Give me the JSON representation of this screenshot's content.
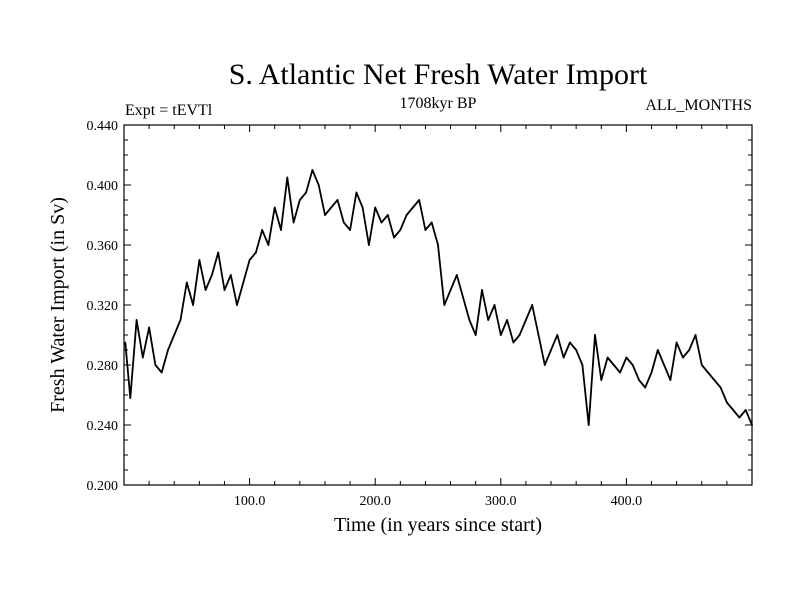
{
  "colors": {
    "line": "#000000",
    "background": "#ffffff"
  },
  "chart_data": {
    "type": "line",
    "title": "S. Atlantic Net Fresh Water Import",
    "experiment": "Expt = tEVTl",
    "period": "1708kyr BP",
    "months": "ALL_MONTHS",
    "xlabel": "Time (in years since start)",
    "ylabel": "Fresh Water Import (in Sv)",
    "xlim": [
      0,
      500
    ],
    "ylim": [
      0.2,
      0.44
    ],
    "x_ticks": [
      100,
      200,
      300,
      400
    ],
    "x_tick_labels": [
      "100.0",
      "200.0",
      "300.0",
      "400.0"
    ],
    "y_ticks": [
      0.2,
      0.24,
      0.28,
      0.32,
      0.36,
      0.4,
      0.44
    ],
    "y_tick_labels": [
      "0.200",
      "0.240",
      "0.280",
      "0.320",
      "0.360",
      "0.400",
      "0.440"
    ],
    "grid": false,
    "series": [
      {
        "name": "Fresh Water Import",
        "x": [
          1,
          5,
          10,
          15,
          20,
          25,
          30,
          35,
          40,
          45,
          50,
          55,
          60,
          65,
          70,
          75,
          80,
          85,
          90,
          95,
          100,
          105,
          110,
          115,
          120,
          125,
          130,
          135,
          140,
          145,
          150,
          155,
          160,
          165,
          170,
          175,
          180,
          185,
          190,
          195,
          200,
          205,
          210,
          215,
          220,
          225,
          230,
          235,
          240,
          245,
          250,
          255,
          260,
          265,
          270,
          275,
          280,
          285,
          290,
          295,
          300,
          305,
          310,
          315,
          320,
          325,
          330,
          335,
          340,
          345,
          350,
          355,
          360,
          365,
          370,
          375,
          380,
          385,
          390,
          395,
          400,
          405,
          410,
          415,
          420,
          425,
          430,
          435,
          440,
          445,
          450,
          455,
          460,
          465,
          470,
          475,
          480,
          485,
          490,
          495,
          500
        ],
        "values": [
          0.295,
          0.258,
          0.31,
          0.285,
          0.305,
          0.28,
          0.275,
          0.29,
          0.3,
          0.31,
          0.335,
          0.32,
          0.35,
          0.33,
          0.34,
          0.355,
          0.33,
          0.34,
          0.32,
          0.335,
          0.35,
          0.355,
          0.37,
          0.36,
          0.385,
          0.37,
          0.405,
          0.375,
          0.39,
          0.395,
          0.41,
          0.4,
          0.38,
          0.385,
          0.39,
          0.375,
          0.37,
          0.395,
          0.385,
          0.36,
          0.385,
          0.375,
          0.38,
          0.365,
          0.37,
          0.38,
          0.385,
          0.39,
          0.37,
          0.375,
          0.36,
          0.32,
          0.33,
          0.34,
          0.325,
          0.31,
          0.3,
          0.33,
          0.31,
          0.32,
          0.3,
          0.31,
          0.295,
          0.3,
          0.31,
          0.32,
          0.3,
          0.28,
          0.29,
          0.3,
          0.285,
          0.295,
          0.29,
          0.28,
          0.24,
          0.3,
          0.27,
          0.285,
          0.28,
          0.275,
          0.285,
          0.28,
          0.27,
          0.265,
          0.275,
          0.29,
          0.28,
          0.27,
          0.295,
          0.285,
          0.29,
          0.3,
          0.28,
          0.275,
          0.27,
          0.265,
          0.255,
          0.25,
          0.245,
          0.25,
          0.24
        ]
      }
    ]
  }
}
